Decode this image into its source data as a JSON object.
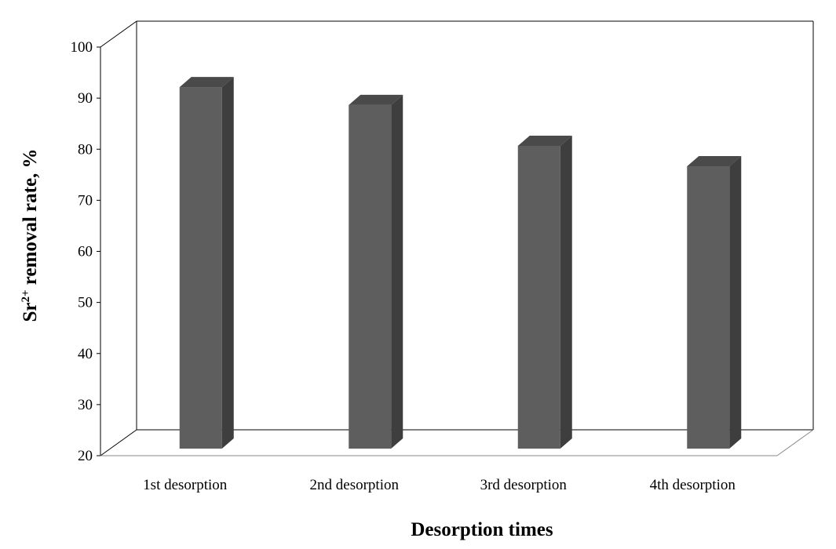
{
  "chart_data": {
    "type": "bar",
    "title": "",
    "xlabel": "Desorption times",
    "ylabel_main": "Sr",
    "ylabel_sup": "2+",
    "ylabel_rest": " removal rate, %",
    "categories": [
      "1st desorption",
      "2nd desorption",
      "3rd desorption",
      "4th desorption"
    ],
    "values": [
      94,
      90.5,
      82.5,
      78.5
    ],
    "ylim": [
      20,
      100
    ],
    "yticks": [
      "20",
      "30",
      "40",
      "50",
      "60",
      "70",
      "80",
      "90",
      "100"
    ],
    "grid": false,
    "legend": "none",
    "bar_front_color": "#5e5e5e",
    "bar_side_color": "#3e3e3e",
    "bar_top_color": "#4a4a4a",
    "wall_line_color": "#000000",
    "floor_line_color": "#888888"
  }
}
